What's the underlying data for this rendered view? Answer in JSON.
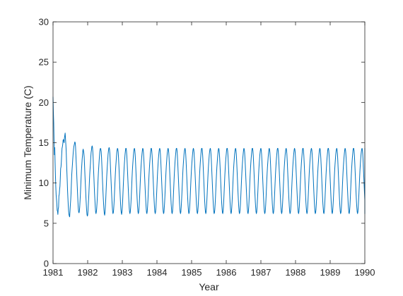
{
  "chart_data": {
    "type": "line",
    "title": "",
    "xlabel": "Year",
    "ylabel": "Minimum Temperature (C)",
    "xlim": [
      1981,
      1990
    ],
    "ylim": [
      0,
      30
    ],
    "xticks": [
      1981,
      1982,
      1983,
      1984,
      1985,
      1986,
      1987,
      1988,
      1989,
      1990
    ],
    "yticks": [
      0,
      5,
      10,
      15,
      20,
      25,
      30
    ],
    "grid": false,
    "box": true,
    "line_color": "#0072BD",
    "sampling": "daily",
    "series": [
      {
        "x_start": 1981,
        "x_step_years": 0.01,
        "values": [
          20.7,
          18.8,
          17.5,
          15.2,
          13.5,
          14.4,
          12.5,
          10.9,
          9.5,
          8.5,
          8.0,
          7.4,
          6.6,
          6.5,
          6.1,
          6.8,
          7.0,
          8.4,
          8.6,
          9.2,
          9.6,
          10.6,
          11.8,
          12.0,
          12.6,
          13.5,
          14.3,
          14.5,
          14.8,
          15.3,
          15.4,
          15.2,
          15.0,
          15.6,
          15.9,
          16.2,
          15.5,
          14.8,
          14.0,
          12.6,
          11.4,
          10.3,
          9.0,
          8.1,
          7.2,
          6.5,
          6.1,
          5.9,
          5.8,
          6.5,
          7.3,
          7.9,
          8.7,
          9.9,
          11.0,
          11.7,
          12.3,
          13.0,
          13.6,
          14.1,
          14.5,
          14.7,
          14.9,
          15.1,
          15.0,
          14.5,
          13.5,
          12.5,
          11.6,
          10.5,
          9.5,
          8.5,
          7.6,
          6.8,
          6.4,
          6.3,
          6.5,
          7.0,
          7.8,
          8.6,
          9.6,
          10.6,
          11.5,
          12.2,
          12.9,
          13.4,
          14.0,
          14.2,
          14.0,
          13.7,
          13.2,
          12.2,
          11.1,
          10.1,
          9.2,
          8.2,
          7.4,
          6.6,
          6.1,
          5.9,
          6.0,
          6.6,
          7.4,
          8.2,
          9.2,
          10.2,
          11.1,
          11.8,
          12.4,
          13.2,
          13.8,
          14.1,
          14.5,
          14.6,
          14.4,
          13.8,
          12.9,
          11.7,
          10.7,
          9.6,
          8.6,
          7.8,
          7.0,
          6.4,
          6.2,
          6.4,
          6.8,
          7.5,
          8.3,
          9.4,
          10.4,
          11.3,
          12.0,
          12.7,
          13.3,
          13.9,
          14.2,
          14.3,
          14.2,
          13.9,
          13.2,
          12.2,
          11.1,
          10.1,
          9.1,
          8.2,
          7.4,
          6.7,
          6.2,
          6.0,
          6.3,
          7.0,
          7.8,
          8.8,
          9.8,
          10.8,
          11.6,
          12.3,
          12.9,
          13.6,
          14.0,
          14.3,
          14.4,
          14.2,
          13.7,
          12.8,
          11.8,
          10.8,
          9.8,
          8.8,
          7.9,
          7.1,
          6.5,
          6.2,
          6.3,
          6.7,
          7.4,
          8.3,
          9.3,
          10.3,
          11.2,
          12.0,
          12.6,
          13.2,
          13.8,
          14.1,
          14.3,
          14.2,
          13.9,
          13.2,
          12.3,
          11.3,
          10.3,
          9.3,
          8.3,
          7.4,
          6.7,
          6.3,
          6.1,
          6.4,
          7.0,
          7.8,
          8.8,
          9.8,
          10.8,
          11.7,
          12.4,
          13.0,
          13.6,
          14.0,
          14.3,
          14.3,
          14.0,
          13.4,
          12.5,
          11.5,
          10.5,
          9.5,
          8.6,
          7.7,
          6.9,
          6.4,
          6.2,
          6.4,
          6.9,
          7.6,
          8.5,
          9.5,
          10.6,
          11.5,
          12.2,
          12.8,
          13.4,
          13.9,
          14.2,
          14.3,
          14.1,
          13.6,
          12.8,
          11.8,
          10.8,
          9.8,
          8.8,
          7.9,
          7.1,
          6.5,
          6.2,
          6.3,
          6.7,
          7.4,
          8.3,
          9.3,
          10.3,
          11.2,
          12.0,
          12.6,
          13.2,
          13.7,
          14.1,
          14.3,
          14.2,
          13.8,
          13.1,
          12.2,
          11.2,
          10.2,
          9.2,
          8.3,
          7.5,
          6.8,
          6.3,
          6.2,
          6.5,
          7.1,
          7.9,
          8.9,
          9.9,
          10.9,
          11.7,
          12.4,
          13.0,
          13.6,
          14.0,
          14.3,
          14.3,
          14.0,
          13.4,
          12.5,
          11.5,
          10.5,
          9.5,
          8.5,
          7.7,
          6.9,
          6.4,
          6.2,
          6.4,
          6.9,
          7.7,
          8.6,
          9.6,
          10.6,
          11.5,
          12.2,
          12.9,
          13.4,
          13.9,
          14.2,
          14.3,
          14.1,
          13.6,
          12.8,
          11.8,
          10.8,
          9.8,
          8.8,
          7.9,
          7.1,
          6.5,
          6.2,
          6.3,
          6.8,
          7.5,
          8.4,
          9.4,
          10.4,
          11.3,
          12.1,
          12.7,
          13.3,
          13.8,
          14.1,
          14.3,
          14.2,
          13.8,
          13.1,
          12.2,
          11.2,
          10.2,
          9.2,
          8.3,
          7.4,
          6.8,
          6.3,
          6.2,
          6.5,
          7.1,
          8.0,
          9.0,
          10.0,
          11.0,
          11.8,
          12.5,
          13.1,
          13.6,
          14.1,
          14.3,
          14.3,
          14.0,
          13.4,
          12.5,
          11.5,
          10.5,
          9.5,
          8.5,
          7.6,
          6.9,
          6.4,
          6.2,
          6.4,
          7.0,
          7.8,
          8.7,
          9.7,
          10.7,
          11.6,
          12.3,
          12.9,
          13.5,
          13.9,
          14.2,
          14.3,
          14.1,
          13.6,
          12.8,
          11.8,
          10.8,
          9.8,
          8.8,
          7.9,
          7.1,
          6.5,
          6.2,
          6.3,
          6.7,
          7.4,
          8.3,
          9.3,
          10.3,
          11.2,
          12.0,
          12.6,
          13.2,
          13.7,
          14.1,
          14.3,
          14.2,
          13.8,
          13.1,
          12.2,
          11.2,
          10.2,
          9.2,
          8.3,
          7.4,
          6.8,
          6.3,
          6.2,
          6.5,
          7.1,
          8.0,
          9.0,
          10.0,
          11.0,
          11.8,
          12.5,
          13.1,
          13.6,
          14.1,
          14.3,
          14.3,
          14.0,
          13.4,
          12.5,
          11.5,
          10.5,
          9.5,
          8.5,
          7.6,
          6.9,
          6.4,
          6.2,
          6.4,
          7.0,
          7.8,
          8.7,
          9.7,
          10.7,
          11.6,
          12.3,
          12.9,
          13.5,
          13.9,
          14.2,
          14.3,
          14.1,
          13.6,
          12.8,
          11.8,
          10.8,
          9.8,
          8.8,
          7.9,
          7.1,
          6.5,
          6.2,
          6.3,
          6.7,
          7.4,
          8.3,
          9.3,
          10.3,
          11.2,
          12.0,
          12.6,
          13.2,
          13.7,
          14.1,
          14.3,
          14.2,
          13.8,
          13.1,
          12.2,
          11.2,
          10.2,
          9.2,
          8.3,
          7.4,
          6.8,
          6.3,
          6.2,
          6.5,
          7.1,
          8.0,
          9.0,
          10.0,
          11.0,
          11.8,
          12.5,
          13.1,
          13.6,
          14.1,
          14.3,
          14.3,
          14.0,
          13.4,
          12.5,
          11.5,
          10.5,
          9.5,
          8.5,
          7.6,
          6.9,
          6.4,
          6.2,
          6.4,
          7.0,
          7.8,
          8.7,
          9.7,
          10.7,
          11.6,
          12.3,
          12.9,
          13.5,
          13.9,
          14.2,
          14.3,
          14.1,
          13.6,
          12.8,
          11.8,
          10.8,
          9.8,
          8.8,
          7.9,
          7.1,
          6.5,
          6.2,
          6.3,
          6.7,
          7.4,
          8.3,
          9.3,
          10.3,
          11.2,
          12.0,
          12.6,
          13.2,
          13.7,
          14.1,
          14.3,
          14.2,
          13.8,
          13.1,
          12.2,
          11.2,
          10.2,
          9.2,
          8.3,
          7.4,
          6.8,
          6.3,
          6.2,
          6.5,
          7.1,
          8.0,
          9.0,
          10.0,
          11.0,
          11.8,
          12.5,
          13.1,
          13.6,
          14.1,
          14.3,
          14.3,
          14.0,
          13.4,
          12.5,
          11.5,
          10.5,
          9.5,
          8.5,
          7.6,
          6.9,
          6.4,
          6.2,
          6.4,
          7.0,
          7.8,
          8.7,
          9.7,
          10.7,
          11.6,
          12.3,
          12.9,
          13.5,
          13.9,
          14.2,
          14.3,
          14.1,
          13.6,
          12.8,
          11.8,
          10.8,
          9.8,
          8.8,
          7.9,
          7.1,
          6.5,
          6.2,
          6.3,
          6.7,
          7.4,
          8.3,
          9.3,
          10.3,
          11.2,
          12.0,
          12.6,
          13.2,
          13.7,
          14.1,
          14.3,
          14.2,
          13.8,
          13.1,
          12.2,
          11.2,
          10.2,
          9.2,
          8.3,
          7.4,
          6.8,
          6.3,
          6.2,
          6.5,
          7.1,
          8.0,
          9.0,
          10.0,
          11.0,
          11.8,
          12.5,
          13.1,
          13.6,
          14.1,
          14.3,
          14.3,
          14.0,
          13.4,
          12.5,
          11.5,
          10.5,
          9.5,
          8.5,
          7.6,
          6.9,
          6.4,
          6.2,
          6.4,
          7.0,
          7.8,
          8.7,
          9.7,
          10.7,
          11.6,
          12.3,
          12.9,
          13.5,
          13.9,
          14.2,
          14.3,
          14.1,
          13.6,
          12.8,
          11.8,
          10.8,
          9.8,
          8.8,
          7.9,
          7.1,
          6.5,
          6.2,
          6.3,
          6.7,
          7.4,
          8.3,
          9.3,
          10.3,
          11.2,
          12.0,
          12.6,
          13.2,
          13.7,
          14.1,
          14.3,
          14.2,
          13.8,
          13.1,
          12.2,
          11.2,
          10.2,
          9.2,
          8.3,
          7.4,
          6.8,
          6.3,
          6.2,
          6.5,
          7.1,
          8.0,
          9.0,
          10.0,
          11.0,
          11.8,
          12.5,
          13.1,
          13.6,
          14.1,
          14.3,
          14.3,
          14.0,
          13.4,
          12.5,
          11.5,
          10.5,
          9.5,
          8.5,
          7.6,
          6.9,
          6.4,
          6.2,
          6.4,
          7.0,
          7.8,
          8.7,
          9.7,
          10.7,
          11.6,
          12.3,
          12.9,
          13.5,
          13.9,
          14.2,
          14.3,
          14.1,
          13.6,
          12.8,
          11.8,
          10.8,
          9.8,
          8.8,
          7.9,
          7.1,
          6.5,
          6.2,
          6.3,
          6.7,
          7.4,
          8.3,
          9.3,
          10.3,
          11.2,
          12.0,
          12.6,
          13.2,
          13.7,
          14.1,
          14.3,
          14.2,
          13.8,
          13.1,
          12.2,
          11.2,
          10.2,
          9.2,
          8.3,
          7.4,
          6.8,
          6.3,
          6.2,
          6.5,
          7.1,
          8.0,
          9.0,
          10.0,
          11.0,
          11.8,
          12.5,
          13.1,
          13.6,
          14.1,
          14.3,
          14.3,
          14.0,
          13.4,
          12.5,
          11.5,
          10.5,
          9.5,
          8.5,
          7.6,
          6.9,
          6.4,
          6.2,
          6.4,
          7.0,
          7.8,
          8.7,
          9.7,
          10.7,
          11.6,
          12.3,
          12.9,
          13.5,
          13.9,
          14.2,
          14.3,
          14.1,
          13.6,
          12.8,
          11.8,
          10.8,
          9.8,
          8.8,
          7.9,
          7.1,
          6.5,
          6.2,
          6.3,
          6.7,
          7.4,
          8.3,
          9.3,
          10.3,
          11.2,
          12.0,
          12.6,
          13.2,
          13.7,
          14.1,
          14.3,
          14.2,
          13.8,
          13.1,
          12.2,
          11.2,
          10.2,
          9.2,
          8.3,
          7.4,
          6.8,
          6.3,
          6.2,
          6.5,
          7.1,
          8.0,
          9.0,
          10.0,
          11.0,
          11.8,
          12.5,
          13.1,
          13.6,
          14.1,
          14.3,
          14.3,
          14.0,
          13.4,
          12.5,
          11.5,
          10.5,
          9.5,
          8.5,
          7.6,
          6.9,
          6.4,
          6.2,
          6.4,
          7.0,
          7.8,
          8.7,
          9.7,
          10.7,
          11.6,
          12.3,
          12.9,
          13.5,
          13.9,
          14.2,
          14.3,
          14.1,
          13.6,
          12.8,
          11.8,
          10.8,
          9.8,
          8.8,
          7.9,
          7.1,
          6.5,
          6.2,
          6.3,
          6.7,
          7.4,
          8.3,
          9.3,
          10.3,
          11.2,
          12.0,
          12.6,
          13.2,
          13.7,
          14.1,
          14.3,
          14.2,
          13.8,
          13.1,
          12.2,
          11.2,
          10.2,
          9.2,
          8.3,
          7.4,
          6.8,
          6.3,
          6.2,
          6.5,
          7.1,
          8.0,
          9.0,
          10.0,
          11.0,
          11.8,
          12.5,
          13.1,
          13.6,
          14.1,
          14.3,
          14.3,
          14.0,
          13.4,
          12.5,
          11.5,
          10.5,
          9.5,
          8.5,
          7.6,
          6.9,
          6.4,
          6.2,
          6.4,
          7.0,
          7.8,
          8.7,
          9.7,
          10.7,
          11.6,
          12.3,
          12.9,
          13.5,
          13.9,
          14.2,
          14.3,
          14.1,
          13.6,
          12.8,
          11.8,
          10.8,
          9.8,
          8.8,
          7.9,
          7.1,
          6.5,
          6.2,
          6.3,
          6.7,
          7.4,
          8.3,
          9.3,
          10.3,
          11.2,
          12.0,
          12.6,
          13.2,
          13.7,
          14.1,
          14.3,
          14.2,
          13.8,
          13.1,
          12.2,
          11.2
        ]
      }
    ]
  }
}
